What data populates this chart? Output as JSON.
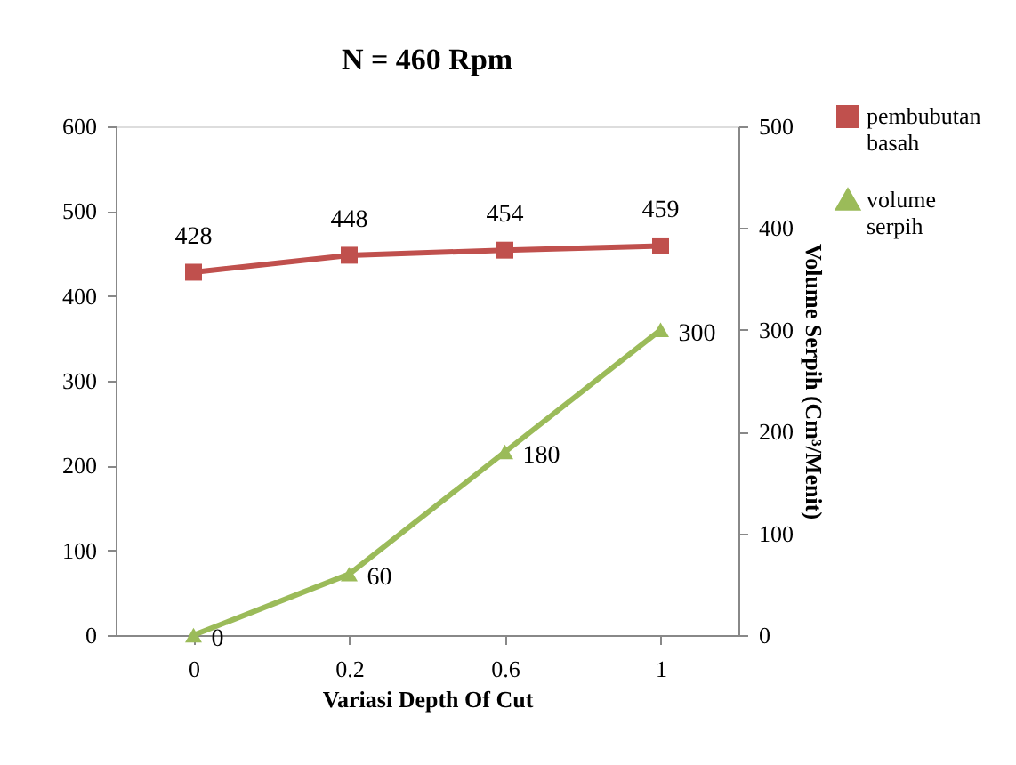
{
  "chart_data": {
    "type": "line",
    "title": "N = 460 Rpm",
    "xlabel": "Variasi Depth Of Cut",
    "y2label": "Volume Serpih (Cm³/Menit)",
    "categories": [
      "0",
      "0.2",
      "0.6",
      "1"
    ],
    "series": [
      {
        "name": "pembubutan basah",
        "color": "#c0504d",
        "marker": "square",
        "values": [
          428,
          448,
          454,
          459
        ]
      },
      {
        "name": "volume serpih",
        "color": "#9bbb59",
        "marker": "triangle",
        "axis": "y2",
        "values": [
          0,
          60,
          180,
          300
        ]
      }
    ],
    "ylim": [
      0,
      600
    ],
    "yticks": [
      0,
      100,
      200,
      300,
      400,
      500,
      600
    ],
    "y2lim": [
      0,
      500
    ],
    "y2ticks": [
      0,
      100,
      200,
      300,
      400,
      500
    ],
    "data_labels": true,
    "grid": false,
    "legend": "top right",
    "line_style": "solid"
  }
}
